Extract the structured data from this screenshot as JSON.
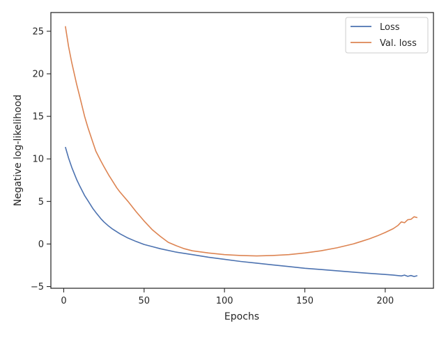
{
  "chart_data": {
    "type": "line",
    "xlabel": "Epochs",
    "ylabel": "Negative log-likelihood",
    "xlim": [
      -8,
      230
    ],
    "ylim": [
      -5.2,
      27.2
    ],
    "xticks": [
      0,
      50,
      100,
      150,
      200
    ],
    "yticks": [
      -5,
      0,
      5,
      10,
      15,
      20,
      25
    ],
    "ytick_labels": [
      "−5",
      "0",
      "5",
      "10",
      "15",
      "20",
      "25"
    ],
    "grid": false,
    "legend": "top-right",
    "series": [
      {
        "name": "Loss",
        "color": "#4c72b0",
        "points": [
          [
            1,
            11.4
          ],
          [
            3,
            10.1
          ],
          [
            5,
            9.0
          ],
          [
            8,
            7.6
          ],
          [
            10,
            6.8
          ],
          [
            13,
            5.7
          ],
          [
            15,
            5.1
          ],
          [
            18,
            4.2
          ],
          [
            20,
            3.7
          ],
          [
            23,
            3.0
          ],
          [
            25,
            2.6
          ],
          [
            28,
            2.1
          ],
          [
            30,
            1.8
          ],
          [
            35,
            1.2
          ],
          [
            40,
            0.7
          ],
          [
            45,
            0.3
          ],
          [
            50,
            -0.05
          ],
          [
            55,
            -0.3
          ],
          [
            60,
            -0.55
          ],
          [
            70,
            -0.95
          ],
          [
            80,
            -1.25
          ],
          [
            90,
            -1.55
          ],
          [
            100,
            -1.8
          ],
          [
            110,
            -2.05
          ],
          [
            120,
            -2.25
          ],
          [
            130,
            -2.45
          ],
          [
            140,
            -2.65
          ],
          [
            150,
            -2.85
          ],
          [
            160,
            -3.0
          ],
          [
            170,
            -3.15
          ],
          [
            180,
            -3.3
          ],
          [
            190,
            -3.45
          ],
          [
            200,
            -3.58
          ],
          [
            205,
            -3.65
          ],
          [
            210,
            -3.75
          ],
          [
            212,
            -3.65
          ],
          [
            214,
            -3.8
          ],
          [
            216,
            -3.7
          ],
          [
            218,
            -3.82
          ],
          [
            220,
            -3.72
          ]
        ]
      },
      {
        "name": "Val. loss",
        "color": "#dd8452",
        "points": [
          [
            1,
            25.6
          ],
          [
            3,
            23.2
          ],
          [
            5,
            21.3
          ],
          [
            8,
            18.8
          ],
          [
            10,
            17.3
          ],
          [
            13,
            15.0
          ],
          [
            15,
            13.7
          ],
          [
            18,
            12.0
          ],
          [
            20,
            10.9
          ],
          [
            23,
            9.8
          ],
          [
            25,
            9.1
          ],
          [
            28,
            8.1
          ],
          [
            30,
            7.5
          ],
          [
            33,
            6.6
          ],
          [
            35,
            6.1
          ],
          [
            40,
            5.0
          ],
          [
            45,
            3.8
          ],
          [
            50,
            2.7
          ],
          [
            55,
            1.7
          ],
          [
            60,
            0.9
          ],
          [
            65,
            0.2
          ],
          [
            70,
            -0.2
          ],
          [
            75,
            -0.55
          ],
          [
            80,
            -0.8
          ],
          [
            90,
            -1.05
          ],
          [
            100,
            -1.25
          ],
          [
            110,
            -1.35
          ],
          [
            120,
            -1.4
          ],
          [
            130,
            -1.35
          ],
          [
            140,
            -1.25
          ],
          [
            150,
            -1.05
          ],
          [
            160,
            -0.8
          ],
          [
            170,
            -0.45
          ],
          [
            180,
            0.0
          ],
          [
            185,
            0.3
          ],
          [
            190,
            0.6
          ],
          [
            195,
            0.95
          ],
          [
            200,
            1.35
          ],
          [
            205,
            1.8
          ],
          [
            208,
            2.2
          ],
          [
            210,
            2.6
          ],
          [
            212,
            2.5
          ],
          [
            214,
            2.85
          ],
          [
            216,
            2.9
          ],
          [
            218,
            3.2
          ],
          [
            220,
            3.1
          ]
        ]
      }
    ]
  }
}
